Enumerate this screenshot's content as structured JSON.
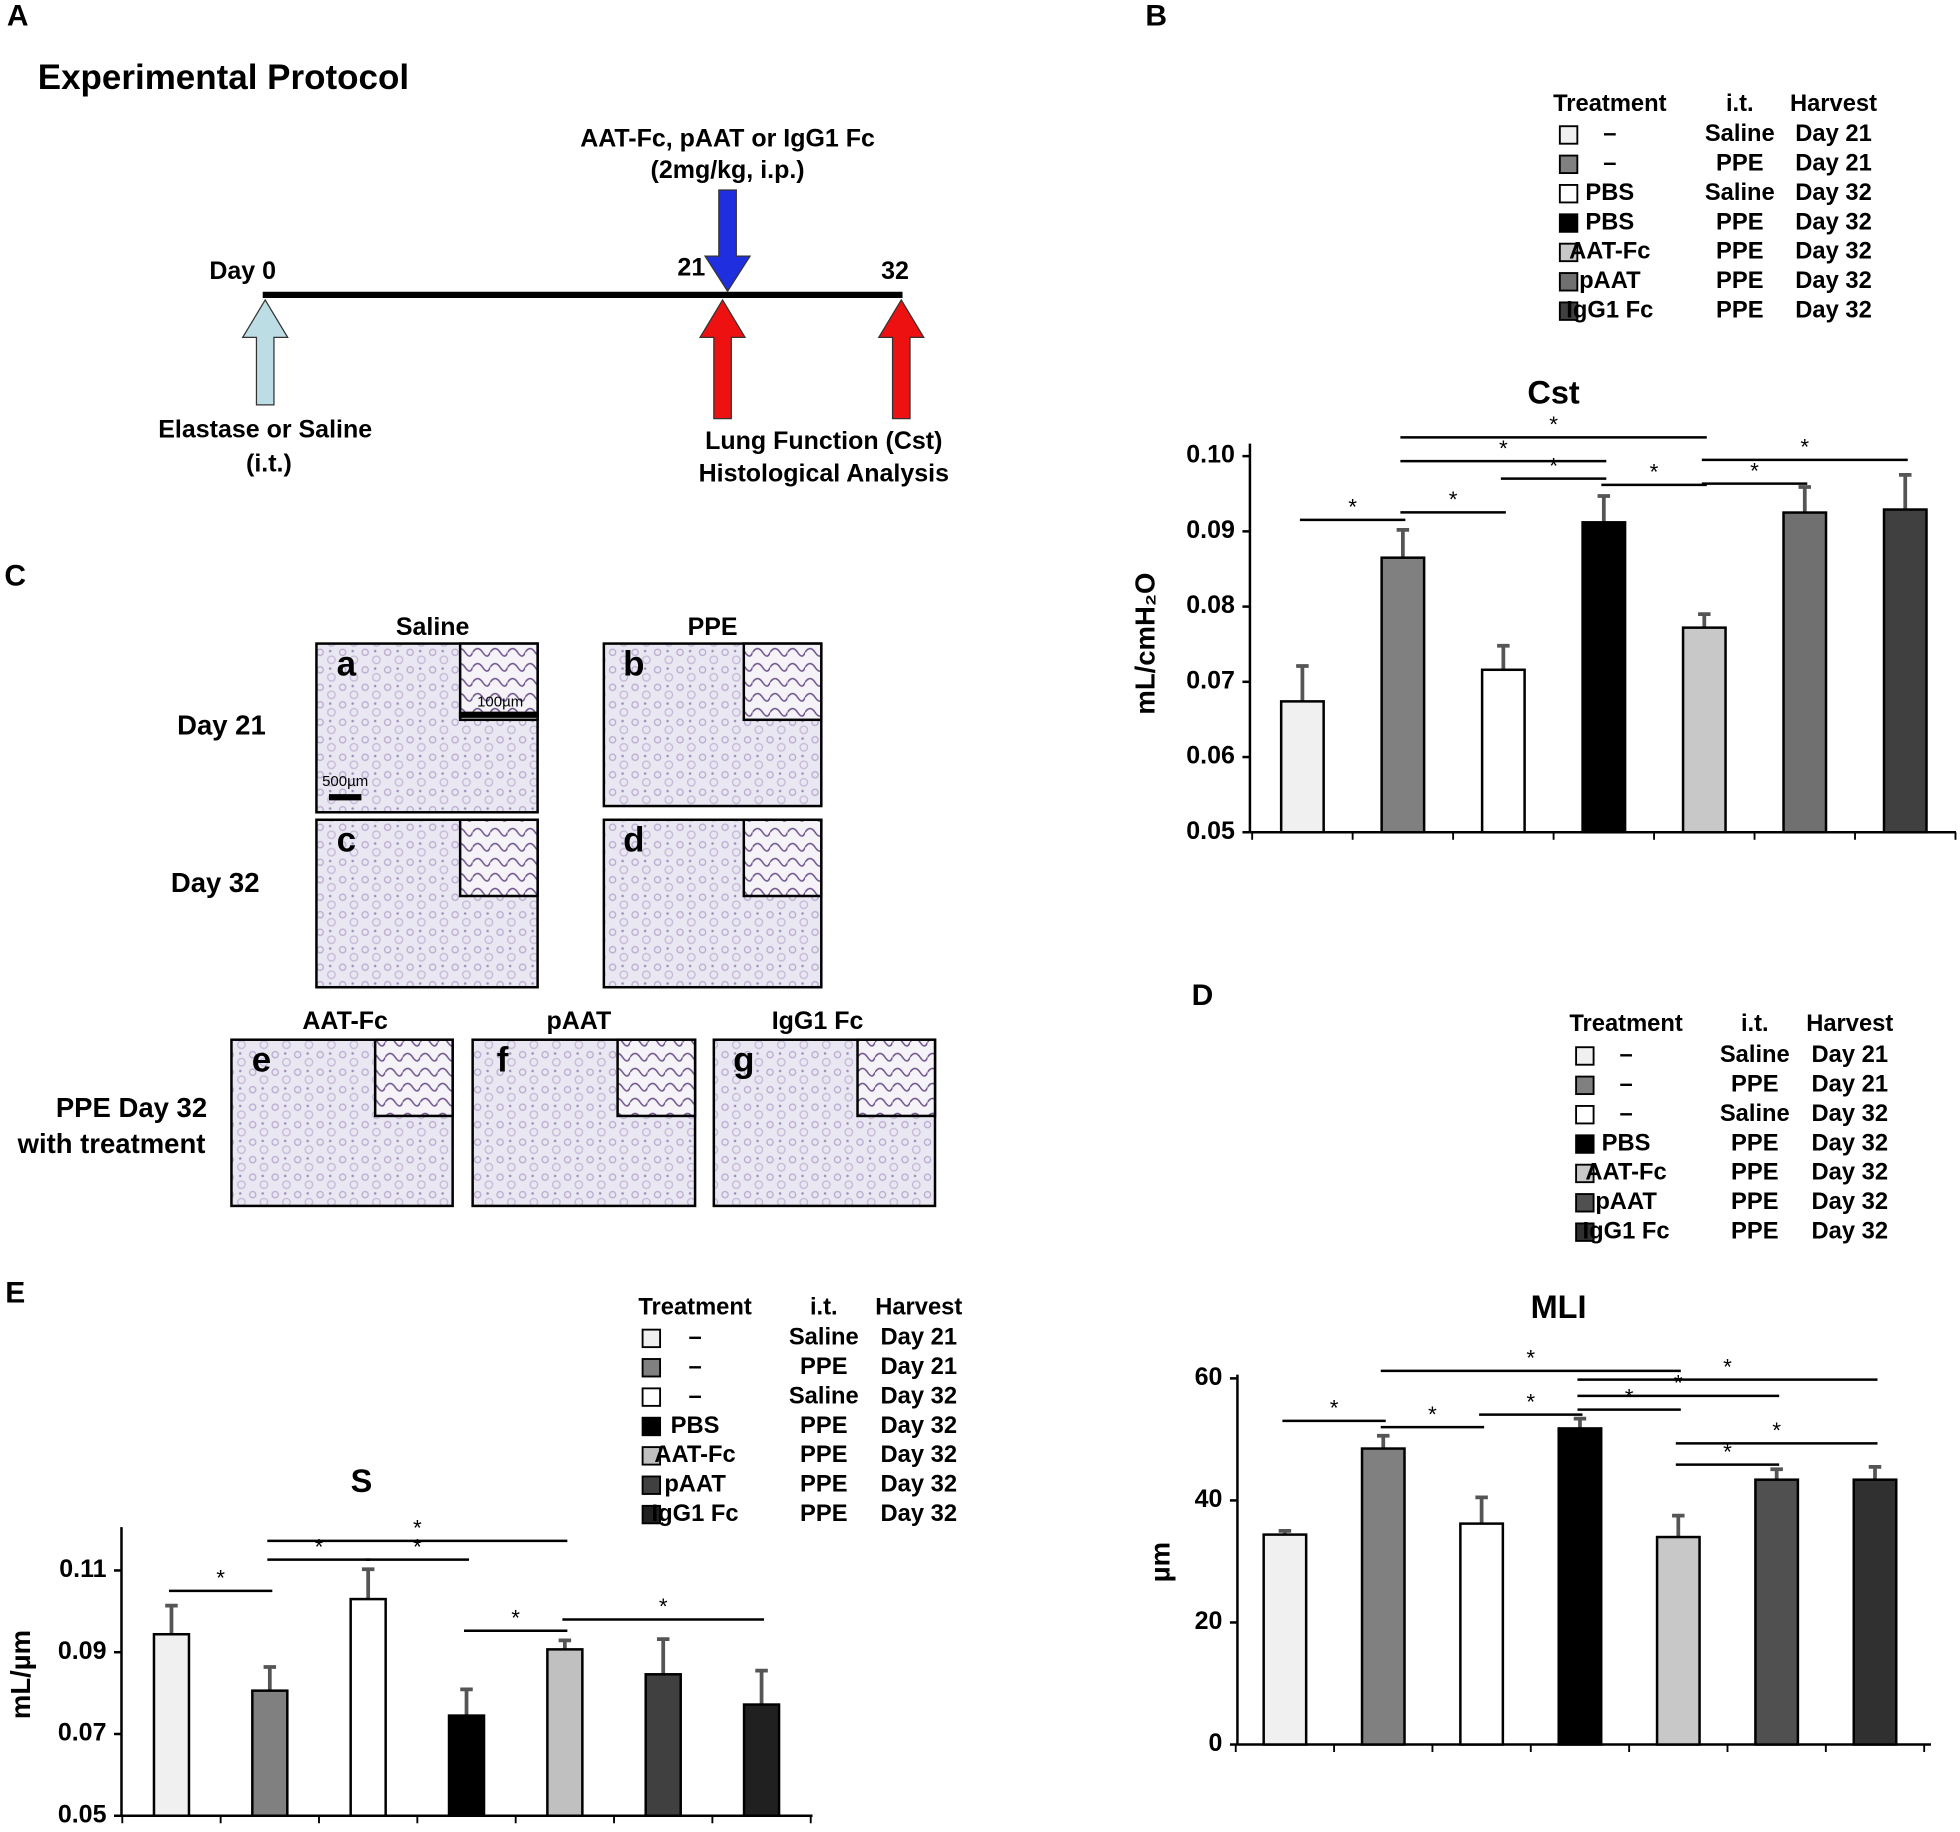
{
  "protocol": {
    "panel": "A",
    "title": "Experimental Protocol",
    "injection": [
      "AAT-Fc, pAAT or IgG1 Fc",
      "(2mg/kg, i.p.)"
    ],
    "timepoints": [
      "Day 0",
      "21",
      "32"
    ],
    "start_label": [
      "Elastase or Saline",
      "(i.t.)"
    ],
    "end_label": [
      "Lung Function (Cst)",
      "Histological Analysis"
    ]
  },
  "histology": {
    "panel": "C",
    "columns": [
      "Saline",
      "PPE"
    ],
    "rows": [
      "Day 21",
      "Day 32"
    ],
    "treatment_columns": [
      "AAT-Fc",
      "pAAT",
      "IgG1 Fc"
    ],
    "treatment_row": [
      "PPE Day 32",
      "with treatment"
    ],
    "images": [
      "a",
      "b",
      "c",
      "d",
      "e",
      "f",
      "g"
    ],
    "scale_bars": [
      "100µm",
      "500µm"
    ]
  },
  "chart_data": [
    {
      "type": "bar",
      "panel": "B",
      "title": "Cst",
      "y_label": "mL/cmH₂O",
      "values": [
        0.0674,
        0.0865,
        0.0716,
        0.0912,
        0.0772,
        0.0925,
        0.0929
      ],
      "errors": [
        0.0047,
        0.0037,
        0.0032,
        0.0035,
        0.0018,
        0.0034,
        0.0046
      ],
      "colors": [
        "#f0f0f0",
        "#808080",
        "#ffffff",
        "#000000",
        "#c8c8c8",
        "#707070",
        "#404040"
      ],
      "ylim": [
        0.05,
        0.1
      ],
      "yticks": [
        0.05,
        0.06,
        0.07,
        0.08,
        0.09,
        {
          "value": 0.1,
          "label": "0.10"
        }
      ],
      "significance": [
        "*",
        "*",
        "*",
        "*",
        "*",
        "*",
        "*",
        "*"
      ],
      "legend": {
        "header": [
          "Treatment",
          "i.t.",
          "Harvest"
        ],
        "rows": [
          [
            "–",
            "Saline",
            "Day 21"
          ],
          [
            "–",
            "PPE",
            "Day 21"
          ],
          [
            "PBS",
            "Saline",
            "Day 32"
          ],
          [
            "PBS",
            "PPE",
            "Day 32"
          ],
          [
            "AAT-Fc",
            "PPE",
            "Day 32"
          ],
          [
            "pAAT",
            "PPE",
            "Day 32"
          ],
          [
            "IgG1 Fc",
            "PPE",
            "Day 32"
          ]
        ]
      }
    },
    {
      "type": "bar",
      "panel": "D",
      "title": "MLI",
      "y_label": "µm",
      "values": [
        34.4,
        48.5,
        36.2,
        51.8,
        34.0,
        43.4,
        43.4
      ],
      "errors": [
        0.6,
        2.1,
        4.3,
        1.6,
        3.5,
        1.7,
        2.1
      ],
      "colors": [
        "#f0f0f0",
        "#808080",
        "#ffffff",
        "#000000",
        "#c8c8c8",
        "#505050",
        "#303030"
      ],
      "ylim": [
        0,
        60
      ],
      "yticks": [
        0,
        20,
        40,
        60
      ],
      "significance": [
        "*",
        "*",
        "*",
        "*",
        "*",
        "*",
        "*",
        "*",
        "*"
      ],
      "legend": {
        "header": [
          "Treatment",
          "i.t.",
          "Harvest"
        ],
        "rows": [
          [
            "–",
            "Saline",
            "Day 21"
          ],
          [
            "–",
            "PPE",
            "Day 21"
          ],
          [
            "–",
            "Saline",
            "Day 32"
          ],
          [
            "PBS",
            "PPE",
            "Day 32"
          ],
          [
            "AAT-Fc",
            "PPE",
            "Day 32"
          ],
          [
            "pAAT",
            "PPE",
            "Day 32"
          ],
          [
            "IgG1 Fc",
            "PPE",
            "Day 32"
          ]
        ]
      }
    },
    {
      "type": "bar",
      "panel": "E",
      "title": "S",
      "y_label": "mL/µm",
      "values": [
        0.0944,
        0.0806,
        0.103,
        0.0745,
        0.0907,
        0.0846,
        0.0772
      ],
      "errors": [
        0.007,
        0.0058,
        0.0073,
        0.0064,
        0.0022,
        0.0086,
        0.0083
      ],
      "colors": [
        "#f0f0f0",
        "#808080",
        "#ffffff",
        "#000000",
        "#c0c0c0",
        "#404040",
        "#202020"
      ],
      "ylim": [
        0.05,
        0.12
      ],
      "yticks": [
        0.05,
        0.07,
        0.09,
        0.11
      ],
      "significance": [
        "*",
        "*",
        "*",
        "*",
        "*",
        "*"
      ],
      "legend": {
        "header": [
          "Treatment",
          "i.t.",
          "Harvest"
        ],
        "rows": [
          [
            "–",
            "Saline",
            "Day 21"
          ],
          [
            "–",
            "PPE",
            "Day 21"
          ],
          [
            "–",
            "Saline",
            "Day 32"
          ],
          [
            "PBS",
            "PPE",
            "Day 32"
          ],
          [
            "AAT-Fc",
            "PPE",
            "Day 32"
          ],
          [
            "pAAT",
            "PPE",
            "Day 32"
          ],
          [
            "IgG1 Fc",
            "PPE",
            "Day 32"
          ]
        ]
      }
    }
  ]
}
